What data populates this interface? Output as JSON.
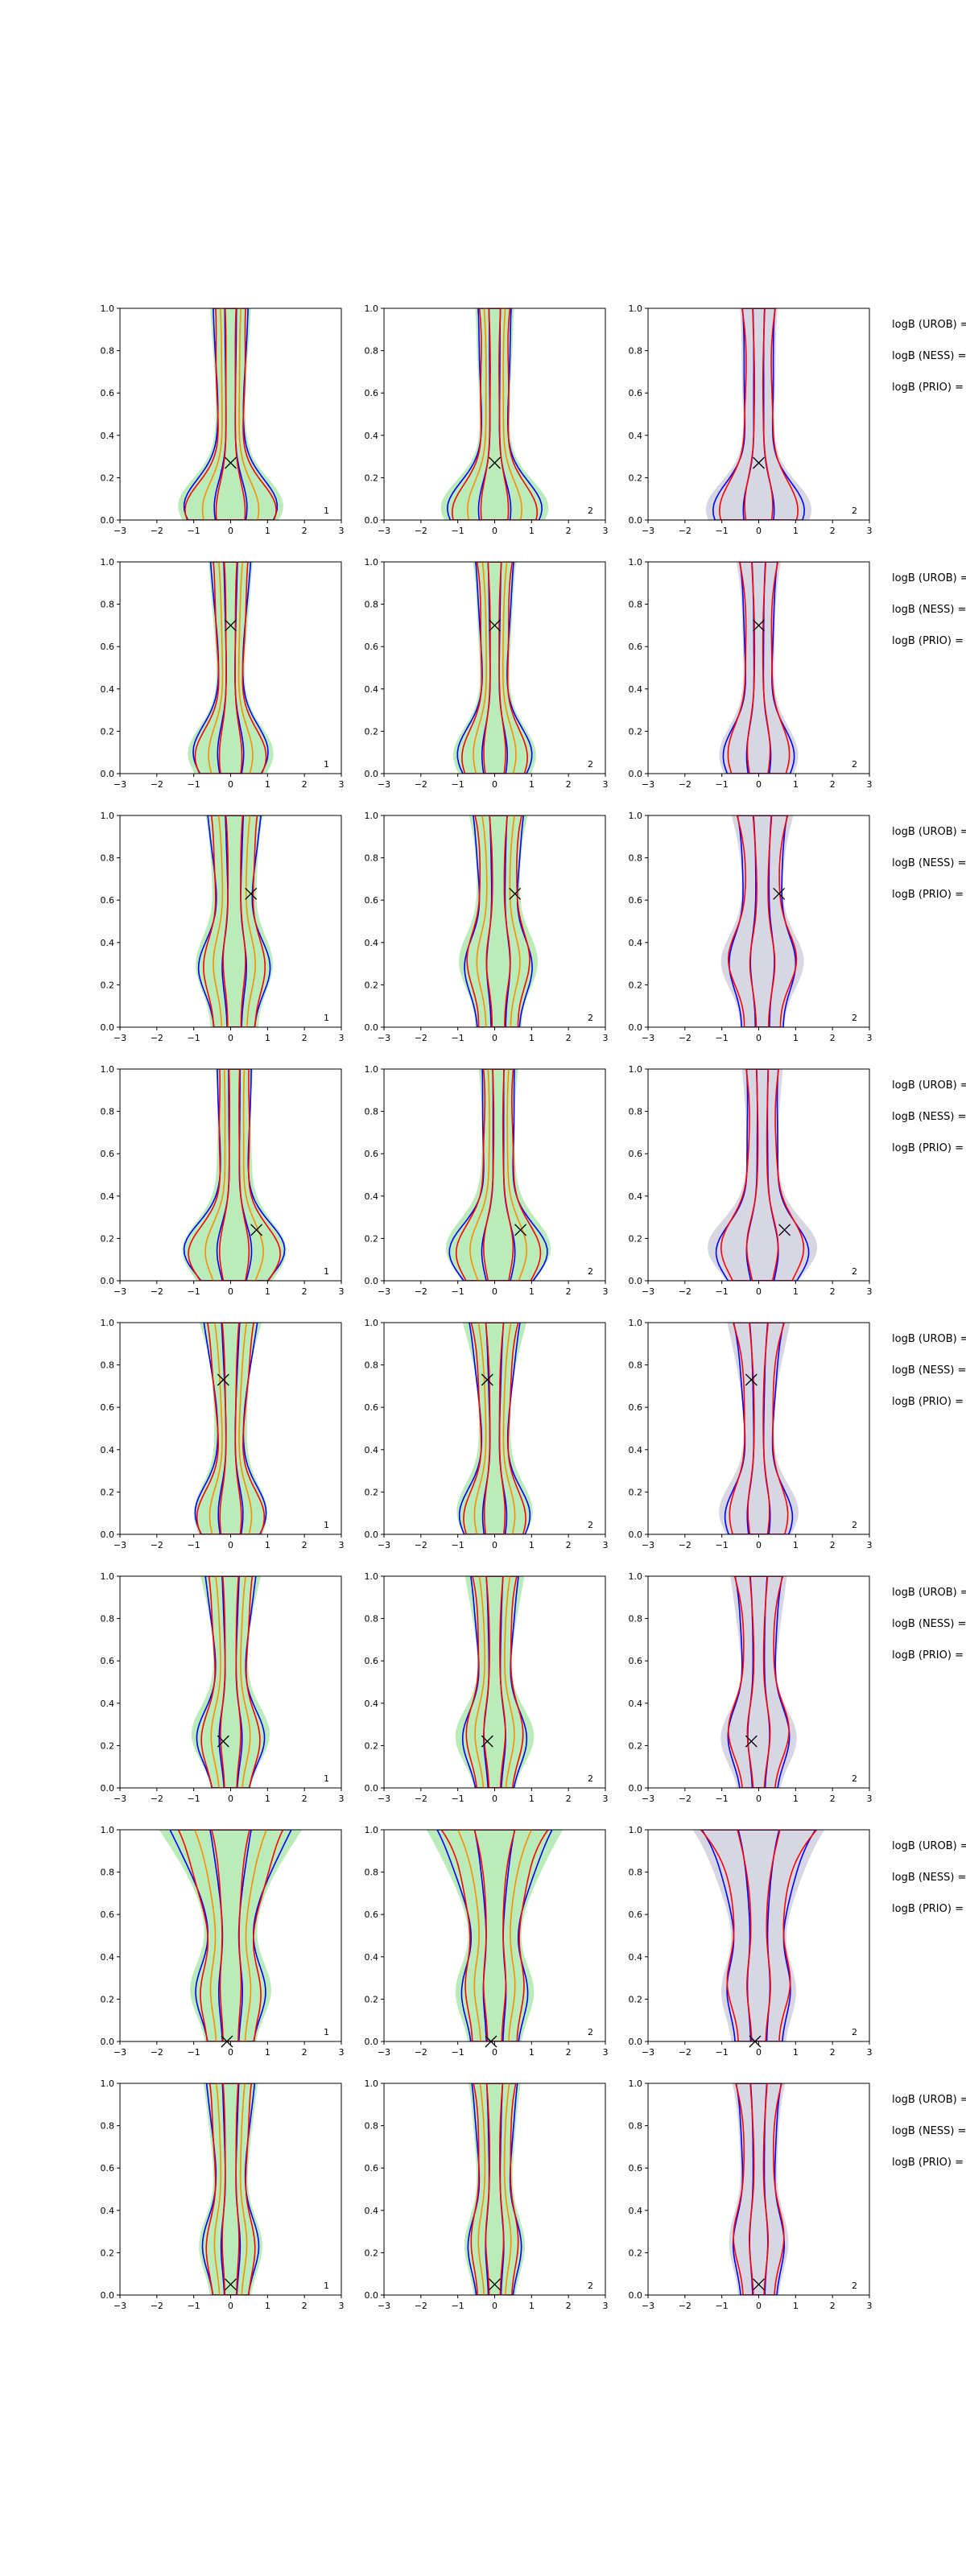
{
  "chart_data": {
    "type": "contour-grid",
    "rows": 8,
    "cols": 3,
    "xlim": [
      -3,
      3
    ],
    "ylim": [
      0,
      1
    ],
    "xticks": [
      "−3",
      "−2",
      "−1",
      "0",
      "1",
      "2",
      "3"
    ],
    "yticks": [
      "0.0",
      "0.2",
      "0.4",
      "0.6",
      "0.8",
      "1.0"
    ],
    "panel_notes": [
      "1",
      "2",
      "2"
    ],
    "side_labels": [
      "logB (UROB) =",
      "logB (NESS) =",
      "logB (PRIO) ="
    ],
    "colors": {
      "blue": "#0000ff",
      "red": "#ff0000",
      "orange": "#ff8c00",
      "green_fill": "#b9ecb9",
      "gray_fill": "#d7d7e4"
    },
    "markers": [
      {
        "x": 0.0,
        "y": 0.27
      },
      {
        "x": 0.0,
        "y": 0.7
      },
      {
        "x": 0.55,
        "y": 0.63
      },
      {
        "x": 0.7,
        "y": 0.24
      },
      {
        "x": -0.2,
        "y": 0.73
      },
      {
        "x": -0.2,
        "y": 0.22
      },
      {
        "x": -0.1,
        "y": 0.0
      },
      {
        "x": 0.0,
        "y": 0.05
      }
    ],
    "shapes": [
      {
        "base": 0.12,
        "base_w": 1.6,
        "neck": 0.6,
        "top_w": 0.35
      },
      {
        "base": 0.2,
        "base_w": 1.2,
        "neck": 0.5,
        "top_w": 0.5
      },
      {
        "base": 0.6,
        "base_w": 1.0,
        "neck": 0.8,
        "top_w": 0.7
      },
      {
        "base": 0.3,
        "base_w": 1.7,
        "neck": 0.7,
        "top_w": 0.3
      },
      {
        "base": 0.2,
        "base_w": 1.1,
        "neck": 0.5,
        "top_w": 0.8
      },
      {
        "base": 0.5,
        "base_w": 1.0,
        "neck": 0.6,
        "top_w": 0.7
      },
      {
        "base": 0.5,
        "base_w": 0.8,
        "neck": 0.9,
        "top_w": 2.2
      },
      {
        "base": 0.5,
        "base_w": 0.7,
        "neck": 0.6,
        "top_w": 0.65
      }
    ]
  }
}
